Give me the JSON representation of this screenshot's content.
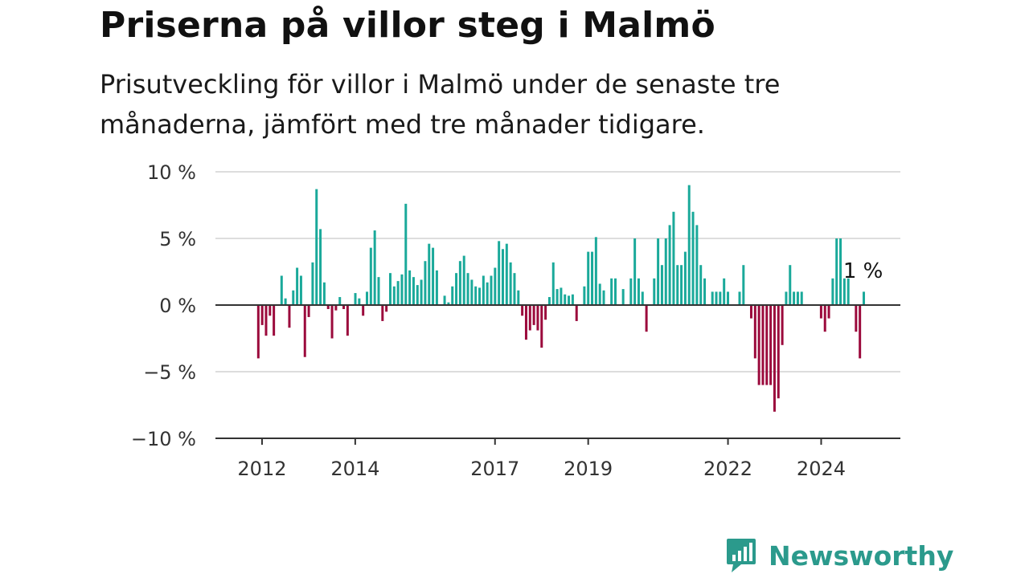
{
  "title": "Priserna på villor steg i Malmö",
  "subtitle": "Prisutveckling för villor i Malmö under de senaste tre månaderna, jämfört med tre månader tidigare.",
  "brand": {
    "name": "Newsworthy",
    "logo_icon": "newsworthy-bar-chart-icon"
  },
  "colors": {
    "positive": "#1aa99a",
    "negative": "#9b0a3c",
    "axis": "#333333",
    "grid": "#dddddd"
  },
  "chart_data": {
    "type": "bar",
    "y_unit": "%",
    "ylim": [
      -10,
      10
    ],
    "y_ticks": [
      10,
      5,
      0,
      -5,
      -10
    ],
    "y_tick_labels": [
      "10 %",
      "5 %",
      "0 %",
      "−5 %",
      "−10 %"
    ],
    "x_tick_labels": [
      "2012",
      "2014",
      "2017",
      "2019",
      "2022",
      "2024"
    ],
    "x_ticks": [
      2012.0,
      2014.0,
      2017.0,
      2019.0,
      2022.0,
      2024.0
    ],
    "grid": true,
    "annotation": {
      "text": "1 %",
      "x": 2024.83
    },
    "x_start": 2011.92,
    "x_step": 0.0833,
    "values": [
      -4,
      -1.5,
      -2.3,
      -0.8,
      -2.3,
      0,
      2.2,
      0.5,
      -1.7,
      1.1,
      2.8,
      2.2,
      -3.9,
      -0.9,
      3.2,
      8.7,
      5.7,
      1.7,
      -0.3,
      -2.5,
      -0.4,
      0.6,
      -0.3,
      -2.3,
      0,
      0.9,
      0.5,
      -0.8,
      1,
      4.3,
      5.6,
      2.1,
      -1.2,
      -0.5,
      2.4,
      1.4,
      1.8,
      2.3,
      7.6,
      2.6,
      2.1,
      1.5,
      1.9,
      3.3,
      4.6,
      4.3,
      2.6,
      0,
      0.7,
      0.2,
      1.4,
      2.4,
      3.3,
      3.7,
      2.4,
      1.9,
      1.4,
      1.3,
      2.2,
      1.7,
      2.2,
      2.8,
      4.8,
      4.2,
      4.6,
      3.2,
      2.4,
      1.1,
      -0.8,
      -2.6,
      -1.9,
      -1.5,
      -1.9,
      -3.2,
      -1.1,
      0.6,
      3.2,
      1.2,
      1.3,
      0.8,
      0.7,
      0.8,
      -1.2,
      0,
      1.4,
      4,
      4,
      5.1,
      1.6,
      1.1,
      0,
      2,
      2,
      0,
      1.2,
      0,
      2,
      5,
      2,
      1,
      -2,
      0,
      2,
      5,
      3,
      5,
      6,
      7,
      3,
      3,
      4,
      9,
      7,
      6,
      3,
      2,
      0,
      1,
      1,
      1,
      2,
      1,
      0,
      0,
      1,
      3,
      0,
      -1,
      -4,
      -6,
      -6,
      -6,
      -6,
      -8,
      -7,
      -3,
      1,
      3,
      1,
      1,
      1,
      0,
      0,
      0,
      0,
      -1,
      -2,
      -1,
      2,
      5,
      5,
      2,
      2,
      0,
      -2,
      -4,
      1
    ]
  }
}
